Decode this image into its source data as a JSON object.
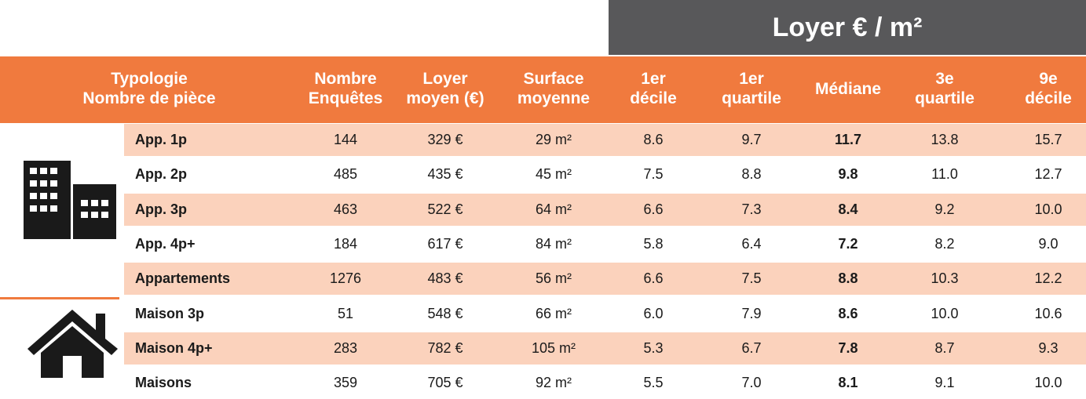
{
  "header": {
    "title": "Loyer € / m²"
  },
  "columns": [
    [
      "Typologie",
      "Nombre de pièce"
    ],
    [
      "Nombre",
      "Enquêtes"
    ],
    [
      "Loyer",
      "moyen (€)"
    ],
    [
      "Surface",
      "moyenne"
    ],
    [
      "1er",
      "décile"
    ],
    [
      "1er",
      "quartile"
    ],
    [
      "Médiane"
    ],
    [
      "3e",
      "quartile"
    ],
    [
      "9e",
      "décile"
    ]
  ],
  "rows": [
    [
      "App. 1p",
      "144",
      "329 €",
      "29 m²",
      "8.6",
      "9.7",
      "11.7",
      "13.8",
      "15.7"
    ],
    [
      "App. 2p",
      "485",
      "435 €",
      "45 m²",
      "7.5",
      "8.8",
      "9.8",
      "11.0",
      "12.7"
    ],
    [
      "App. 3p",
      "463",
      "522 €",
      "64 m²",
      "6.6",
      "7.3",
      "8.4",
      "9.2",
      "10.0"
    ],
    [
      "App. 4p+",
      "184",
      "617 €",
      "84 m²",
      "5.8",
      "6.4",
      "7.2",
      "8.2",
      "9.0"
    ],
    [
      "Appartements",
      "1276",
      "483 €",
      "56 m²",
      "6.6",
      "7.5",
      "8.8",
      "10.3",
      "12.2"
    ],
    [
      "Maison 3p",
      "51",
      "548 €",
      "66 m²",
      "6.0",
      "7.9",
      "8.6",
      "10.0",
      "10.6"
    ],
    [
      "Maison 4p+",
      "283",
      "782 €",
      "105 m²",
      "5.3",
      "6.7",
      "7.8",
      "8.7",
      "9.3"
    ],
    [
      "Maisons",
      "359",
      "705 €",
      "92 m²",
      "5.5",
      "7.0",
      "8.1",
      "9.1",
      "10.0"
    ]
  ]
}
